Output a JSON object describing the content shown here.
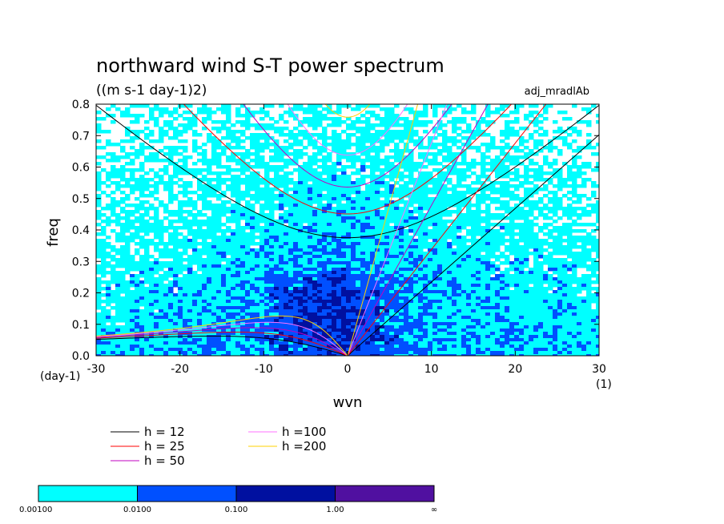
{
  "chart_data": {
    "type": "heatmap",
    "title": "northward wind S-T power spectrum",
    "subtitle": "((m s-1 day-1)2)",
    "tag": "adj_mradlAb",
    "xlabel": "wvn",
    "ylabel": "freq",
    "x_unit": "(1)",
    "y_unit": "(day-1)",
    "xlim": [
      -30,
      30
    ],
    "ylim": [
      0,
      0.8
    ],
    "x_ticks": [
      "-30",
      "-20",
      "-10",
      "0",
      "10",
      "20",
      "30"
    ],
    "x_tick_values": [
      -30,
      -20,
      -10,
      0,
      10,
      20,
      30
    ],
    "y_ticks": [
      "0.0",
      "0.1",
      "0.2",
      "0.3",
      "0.4",
      "0.5",
      "0.6",
      "0.7",
      "0.8"
    ],
    "y_tick_values": [
      0,
      0.1,
      0.2,
      0.3,
      0.4,
      0.5,
      0.6,
      0.7,
      0.8
    ],
    "grid": false,
    "colorbar": {
      "labels": [
        "0.00100",
        "0.0100",
        "0.100",
        "1.00",
        "∞"
      ],
      "colors": [
        "#00ffff",
        "#0050ff",
        "#0010a0",
        "#5010a0"
      ]
    },
    "legend": {
      "placement": "bottom",
      "entries": [
        {
          "label": "h = 12",
          "color": "#000000"
        },
        {
          "label": "h = 25",
          "color": "#ff0000"
        },
        {
          "label": "h = 50",
          "color": "#c000c0"
        },
        {
          "label": "h =100",
          "color": "#ff70ff"
        },
        {
          "label": "h =200",
          "color": "#ffd000"
        }
      ]
    },
    "dispersion_curves": [
      {
        "h": 12,
        "color": "#000000"
      },
      {
        "h": 25,
        "color": "#ff0000"
      },
      {
        "h": 50,
        "color": "#c000c0"
      },
      {
        "h": 100,
        "color": "#ff70ff"
      },
      {
        "h": 200,
        "color": "#ffd000"
      }
    ]
  }
}
